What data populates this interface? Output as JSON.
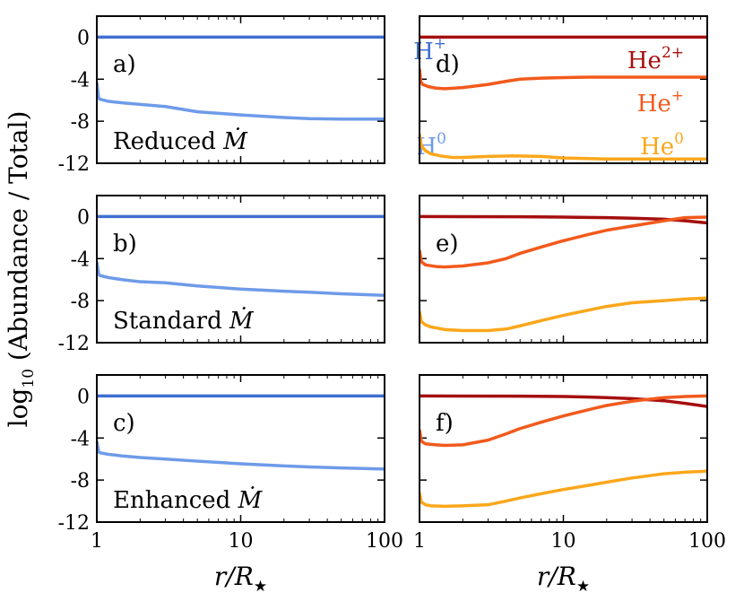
{
  "chart_data": {
    "type": "line",
    "x_scale": "log",
    "xlim": [
      1,
      100
    ],
    "ylim": [
      -12,
      2
    ],
    "xticks": [
      "1",
      "10",
      "100"
    ],
    "yticks": [
      "0",
      "-4",
      "-8",
      "-12"
    ],
    "xlabel": {
      "main": "r/R",
      "sub": "★"
    },
    "ylabel": {
      "pre": "log",
      "sub": "10",
      "post": " (Abundance / Total)"
    },
    "colors": {
      "H+": "#3f6fd1",
      "H0": "#6e9be8",
      "He2+": "#a50f0f",
      "He+": "#f25a1c",
      "He0": "#fba71c"
    },
    "species_labels": [
      {
        "base": "H",
        "sup": "+",
        "color": "#3f6fd1"
      },
      {
        "base": "H",
        "sup": "0",
        "color": "#6e9be8"
      },
      {
        "base": "He",
        "sup": "2+",
        "color": "#a50f0f"
      },
      {
        "base": "He",
        "sup": "+",
        "color": "#f25a1c"
      },
      {
        "base": "He",
        "sup": "0",
        "color": "#fba71c"
      }
    ],
    "rows": [
      {
        "name": "Reduced",
        "mdot": "Ṁ"
      },
      {
        "name": "Standard",
        "mdot": "Ṁ"
      },
      {
        "name": "Enhanced",
        "mdot": "Ṁ"
      }
    ],
    "panels": [
      {
        "label": "a)",
        "series": [
          {
            "name": "H+",
            "x": [
              1,
              100
            ],
            "y": [
              0,
              0
            ]
          },
          {
            "name": "H0",
            "x": [
              1,
              1.03,
              1.05,
              1.2,
              1.5,
              2,
              3,
              5,
              10,
              20,
              30,
              50,
              100
            ],
            "y": [
              -4.3,
              -5.8,
              -5.9,
              -6.1,
              -6.25,
              -6.4,
              -6.6,
              -7.1,
              -7.4,
              -7.65,
              -7.75,
              -7.8,
              -7.8
            ]
          }
        ]
      },
      {
        "label": "b)",
        "series": [
          {
            "name": "H+",
            "x": [
              1,
              100
            ],
            "y": [
              0,
              0
            ]
          },
          {
            "name": "H0",
            "x": [
              1,
              1.03,
              1.05,
              1.2,
              1.5,
              2,
              3,
              5,
              10,
              20,
              30,
              50,
              100
            ],
            "y": [
              -4.3,
              -5.5,
              -5.6,
              -5.8,
              -6.0,
              -6.2,
              -6.3,
              -6.6,
              -6.9,
              -7.1,
              -7.2,
              -7.35,
              -7.5
            ]
          }
        ]
      },
      {
        "label": "c)",
        "series": [
          {
            "name": "H+",
            "x": [
              1,
              100
            ],
            "y": [
              0,
              0
            ]
          },
          {
            "name": "H0",
            "x": [
              1,
              1.03,
              1.05,
              1.2,
              1.5,
              2,
              3,
              5,
              10,
              20,
              30,
              50,
              100
            ],
            "y": [
              -4.3,
              -5.3,
              -5.4,
              -5.55,
              -5.7,
              -5.85,
              -6.0,
              -6.2,
              -6.45,
              -6.65,
              -6.75,
              -6.85,
              -6.95
            ]
          }
        ]
      },
      {
        "label": "d)",
        "series": [
          {
            "name": "He2+",
            "x": [
              1,
              100
            ],
            "y": [
              0,
              0
            ]
          },
          {
            "name": "He+",
            "x": [
              1,
              1.02,
              1.05,
              1.15,
              1.3,
              1.5,
              2,
              3,
              4,
              5,
              7,
              10,
              15,
              20,
              30,
              50,
              100
            ],
            "y": [
              -3.0,
              -4.2,
              -4.5,
              -4.7,
              -4.85,
              -4.9,
              -4.8,
              -4.5,
              -4.2,
              -4.0,
              -3.9,
              -3.85,
              -3.8,
              -3.8,
              -3.8,
              -3.8,
              -3.8
            ]
          },
          {
            "name": "He0",
            "x": [
              1,
              1.02,
              1.05,
              1.1,
              1.2,
              1.4,
              1.7,
              2,
              3,
              4.5,
              7,
              10,
              15,
              20,
              30,
              50,
              100
            ],
            "y": [
              -9.2,
              -10.1,
              -10.5,
              -10.8,
              -11.1,
              -11.3,
              -11.45,
              -11.45,
              -11.35,
              -11.3,
              -11.35,
              -11.5,
              -11.55,
              -11.6,
              -11.6,
              -11.6,
              -11.6
            ]
          }
        ]
      },
      {
        "label": "e)",
        "series": [
          {
            "name": "He2+",
            "x": [
              1,
              5,
              10,
              20,
              30,
              50,
              70,
              100
            ],
            "y": [
              0,
              -0.02,
              -0.05,
              -0.1,
              -0.15,
              -0.25,
              -0.4,
              -0.6
            ]
          },
          {
            "name": "He+",
            "x": [
              1,
              1.03,
              1.1,
              1.3,
              1.5,
              2,
              3,
              4,
              5,
              7,
              10,
              15,
              20,
              30,
              50,
              70,
              100
            ],
            "y": [
              -3.2,
              -4.3,
              -4.6,
              -4.75,
              -4.8,
              -4.7,
              -4.4,
              -4.0,
              -3.5,
              -2.9,
              -2.3,
              -1.7,
              -1.3,
              -0.9,
              -0.4,
              -0.1,
              -0.05
            ]
          },
          {
            "name": "He0",
            "x": [
              1,
              1.03,
              1.1,
              1.2,
              1.5,
              2,
              3,
              4,
              5,
              7,
              10,
              15,
              20,
              30,
              50,
              70,
              100
            ],
            "y": [
              -9.0,
              -10.0,
              -10.3,
              -10.5,
              -10.75,
              -10.85,
              -10.85,
              -10.7,
              -10.4,
              -9.9,
              -9.4,
              -8.9,
              -8.55,
              -8.2,
              -8.0,
              -7.85,
              -7.75
            ]
          }
        ]
      },
      {
        "label": "f)",
        "series": [
          {
            "name": "He2+",
            "x": [
              1,
              5,
              10,
              15,
              20,
              30,
              50,
              70,
              100
            ],
            "y": [
              0,
              -0.02,
              -0.05,
              -0.1,
              -0.15,
              -0.25,
              -0.45,
              -0.7,
              -1.0
            ]
          },
          {
            "name": "He+",
            "x": [
              1,
              1.03,
              1.1,
              1.3,
              1.5,
              2,
              3,
              4,
              5,
              7,
              10,
              15,
              20,
              30,
              50,
              70,
              100
            ],
            "y": [
              -3.2,
              -4.3,
              -4.55,
              -4.65,
              -4.7,
              -4.65,
              -4.2,
              -3.6,
              -3.1,
              -2.5,
              -1.9,
              -1.3,
              -0.9,
              -0.5,
              -0.15,
              -0.05,
              0
            ]
          },
          {
            "name": "He0",
            "x": [
              1,
              1.03,
              1.1,
              1.2,
              1.5,
              2,
              3,
              4,
              5,
              7,
              10,
              15,
              20,
              30,
              50,
              70,
              100
            ],
            "y": [
              -9.2,
              -10.1,
              -10.35,
              -10.45,
              -10.5,
              -10.45,
              -10.35,
              -10.0,
              -9.7,
              -9.3,
              -8.9,
              -8.5,
              -8.2,
              -7.8,
              -7.4,
              -7.25,
              -7.15
            ]
          }
        ]
      }
    ]
  }
}
